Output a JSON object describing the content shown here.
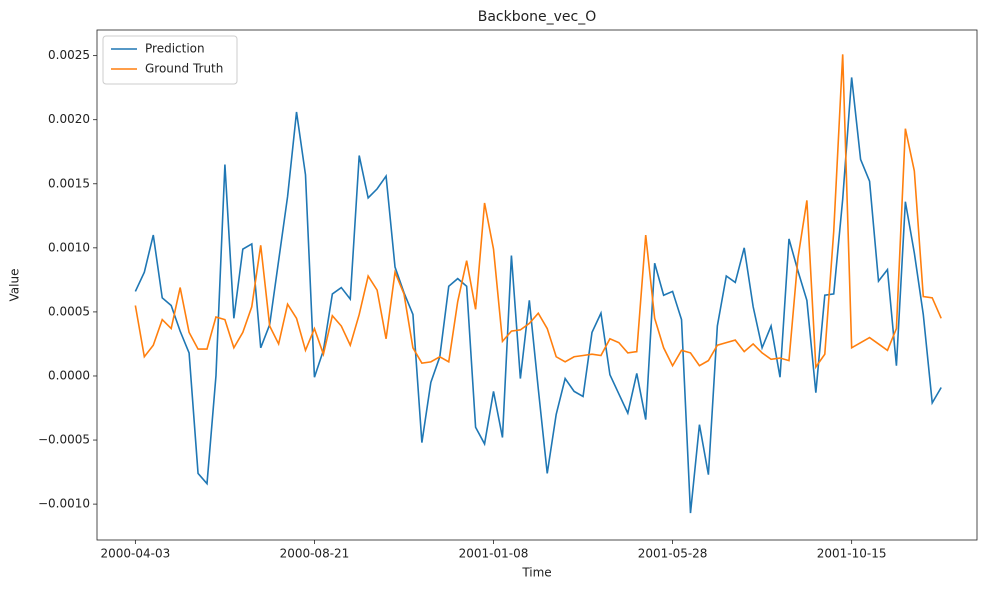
{
  "chart_data": {
    "type": "line",
    "title": "Backbone_vec_O",
    "xlabel": "Time",
    "ylabel": "Value",
    "legend": "upper left",
    "grid": false,
    "x": [
      "2000-04-03",
      "2000-04-10",
      "2000-04-17",
      "2000-04-24",
      "2000-05-01",
      "2000-05-08",
      "2000-05-15",
      "2000-05-22",
      "2000-05-29",
      "2000-06-05",
      "2000-06-12",
      "2000-06-19",
      "2000-06-26",
      "2000-07-03",
      "2000-07-10",
      "2000-07-17",
      "2000-07-24",
      "2000-07-31",
      "2000-08-07",
      "2000-08-14",
      "2000-08-21",
      "2000-08-28",
      "2000-09-04",
      "2000-09-11",
      "2000-09-18",
      "2000-09-25",
      "2000-10-02",
      "2000-10-09",
      "2000-10-16",
      "2000-10-23",
      "2000-10-30",
      "2000-11-06",
      "2000-11-13",
      "2000-11-20",
      "2000-11-27",
      "2000-12-04",
      "2000-12-11",
      "2000-12-18",
      "2000-12-25",
      "2001-01-01",
      "2001-01-08",
      "2001-01-15",
      "2001-01-22",
      "2001-01-29",
      "2001-02-05",
      "2001-02-12",
      "2001-02-19",
      "2001-02-26",
      "2001-03-05",
      "2001-03-12",
      "2001-03-19",
      "2001-03-26",
      "2001-04-02",
      "2001-04-09",
      "2001-04-16",
      "2001-04-23",
      "2001-04-30",
      "2001-05-07",
      "2001-05-14",
      "2001-05-21",
      "2001-05-28",
      "2001-06-04",
      "2001-06-11",
      "2001-06-18",
      "2001-06-25",
      "2001-07-02",
      "2001-07-09",
      "2001-07-16",
      "2001-07-23",
      "2001-07-30",
      "2001-08-06",
      "2001-08-13",
      "2001-08-20",
      "2001-08-27",
      "2001-09-03",
      "2001-09-10",
      "2001-09-17",
      "2001-09-24",
      "2001-10-01",
      "2001-10-08",
      "2001-10-15",
      "2001-10-22",
      "2001-10-29",
      "2001-11-05",
      "2001-11-12",
      "2001-11-19",
      "2001-11-26",
      "2001-12-03",
      "2001-12-10",
      "2001-12-17",
      "2001-12-24"
    ],
    "series": [
      {
        "name": "Prediction",
        "color": "#1f77b4",
        "values": [
          0.00066,
          0.00081,
          0.0011,
          0.00061,
          0.00055,
          0.00035,
          0.00018,
          -0.00076,
          -0.00084,
          0.0,
          0.00165,
          0.00045,
          0.00099,
          0.00103,
          0.00022,
          0.0004,
          0.0009,
          0.0014,
          0.00206,
          0.00157,
          -1e-05,
          0.0002,
          0.00064,
          0.00069,
          0.0006,
          0.00172,
          0.00139,
          0.00146,
          0.00156,
          0.00085,
          0.00065,
          0.00048,
          -0.00052,
          -5e-05,
          0.00015,
          0.0007,
          0.00076,
          0.0007,
          -0.0004,
          -0.00053,
          -0.00012,
          -0.00048,
          0.00094,
          -2e-05,
          0.00059,
          -0.0001,
          -0.00076,
          -0.0003,
          -2e-05,
          -0.00012,
          -0.00016,
          0.00034,
          0.00049,
          1e-05,
          -0.00014,
          -0.00029,
          2e-05,
          -0.00034,
          0.00088,
          0.00063,
          0.00066,
          0.00044,
          -0.00107,
          -0.00038,
          -0.00077,
          0.00039,
          0.00078,
          0.00073,
          0.001,
          0.00054,
          0.00022,
          0.00039,
          -1e-05,
          0.00107,
          0.00082,
          0.00059,
          -0.00013,
          0.00063,
          0.00064,
          0.00138,
          0.00233,
          0.00169,
          0.00152,
          0.00074,
          0.00083,
          8e-05,
          0.00136,
          0.00096,
          0.00048,
          -0.00021,
          -9e-05
        ]
      },
      {
        "name": "Ground Truth",
        "color": "#ff7f0e",
        "values": [
          0.00055,
          0.00015,
          0.00024,
          0.00044,
          0.00037,
          0.00069,
          0.00034,
          0.00021,
          0.00021,
          0.00046,
          0.00044,
          0.00022,
          0.00034,
          0.00054,
          0.00102,
          0.00039,
          0.00025,
          0.00056,
          0.00045,
          0.0002,
          0.00037,
          0.00017,
          0.00047,
          0.00039,
          0.00024,
          0.00048,
          0.00078,
          0.00067,
          0.00029,
          0.00081,
          0.00064,
          0.00022,
          0.0001,
          0.00011,
          0.00015,
          0.00011,
          0.00058,
          0.0009,
          0.00052,
          0.00135,
          0.00099,
          0.00027,
          0.00035,
          0.00036,
          0.00041,
          0.00049,
          0.00037,
          0.00015,
          0.00011,
          0.00015,
          0.00016,
          0.00017,
          0.00016,
          0.00029,
          0.00026,
          0.00018,
          0.00019,
          0.0011,
          0.00045,
          0.00022,
          8e-05,
          0.0002,
          0.00018,
          8e-05,
          0.00012,
          0.00024,
          0.00026,
          0.00028,
          0.00019,
          0.00025,
          0.00018,
          0.00013,
          0.00014,
          0.00012,
          0.00092,
          0.00137,
          7e-05,
          0.00017,
          0.00113,
          0.00251,
          0.00022,
          0.00026,
          0.0003,
          0.00025,
          0.0002,
          0.00037,
          0.00193,
          0.0016,
          0.00062,
          0.00061,
          0.00045
        ]
      }
    ],
    "xlim": [
      "2000-03-04",
      "2002-01-21"
    ],
    "xticks": [
      "2000-04-03",
      "2000-08-21",
      "2001-01-08",
      "2001-05-28",
      "2001-10-15"
    ],
    "ylim": [
      -0.00128,
      0.0027
    ],
    "yticks": [
      {
        "value": -0.001,
        "label": "−0.0010"
      },
      {
        "value": -0.0005,
        "label": "−0.0005"
      },
      {
        "value": 0,
        "label": "0.0000"
      },
      {
        "value": 0.0005,
        "label": "0.0005"
      },
      {
        "value": 0.001,
        "label": "0.0010"
      },
      {
        "value": 0.0015,
        "label": "0.0015"
      },
      {
        "value": 0.002,
        "label": "0.0020"
      },
      {
        "value": 0.0025,
        "label": "0.0025"
      }
    ]
  }
}
